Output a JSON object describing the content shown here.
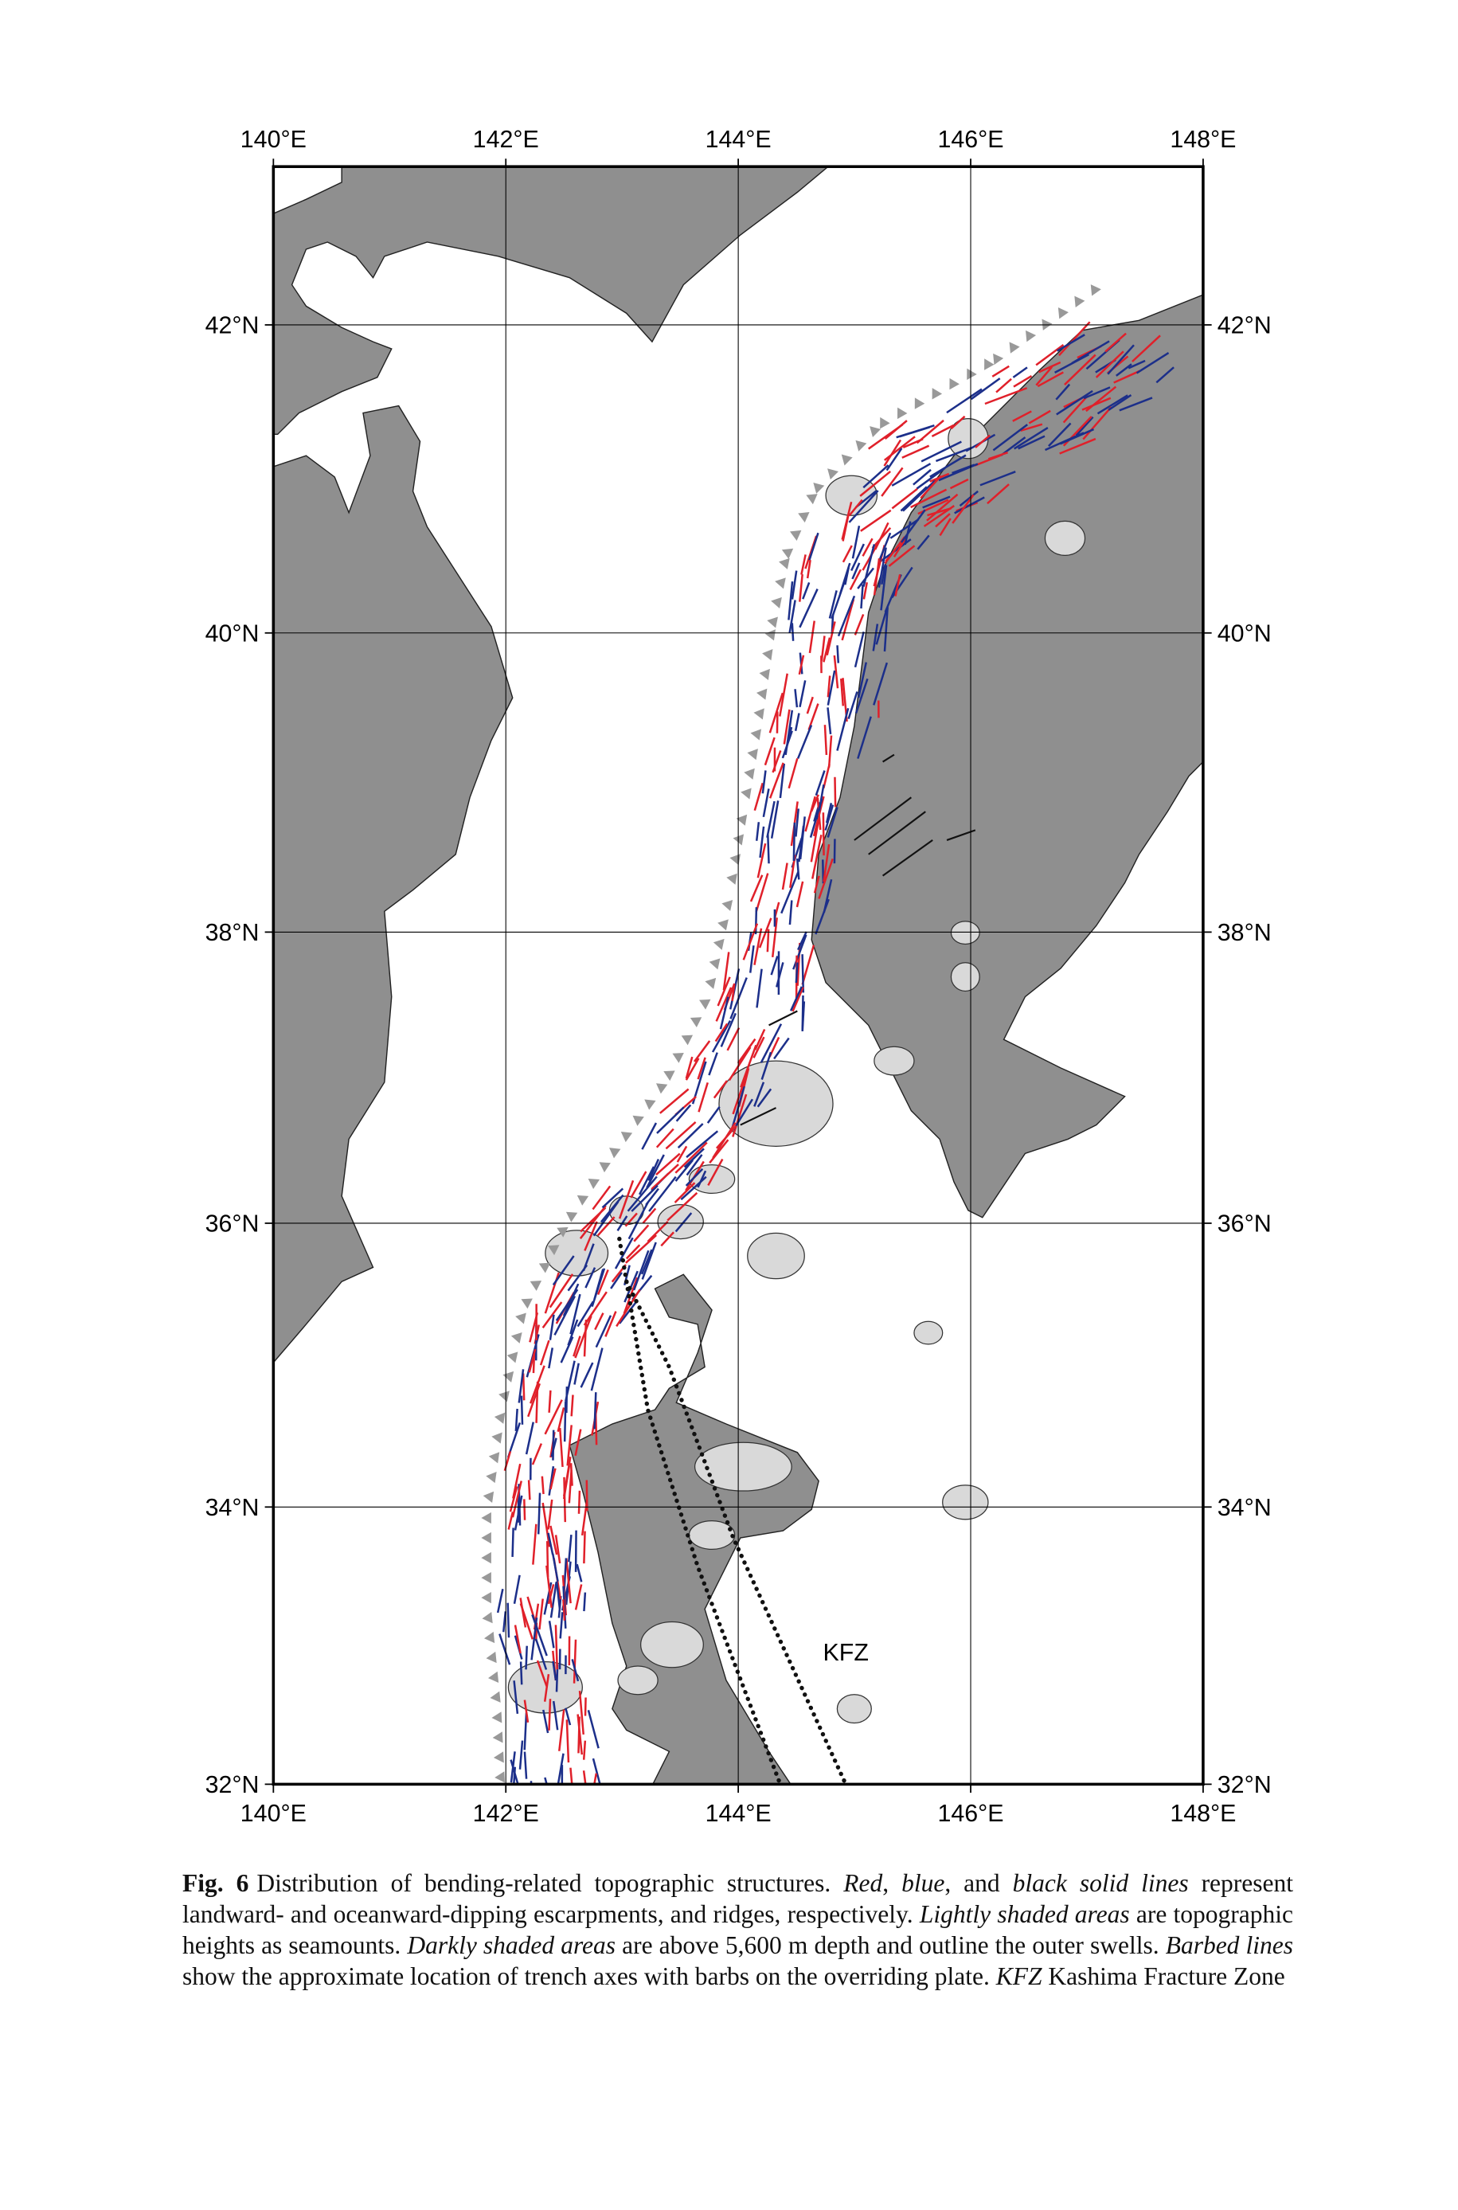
{
  "chart_data": {
    "type": "map",
    "projection": "mercator",
    "xlim": [
      140,
      148
    ],
    "ylim": [
      32,
      43
    ],
    "xticks": [
      {
        "value": 140,
        "label": "140°E"
      },
      {
        "value": 142,
        "label": "142°E"
      },
      {
        "value": 144,
        "label": "144°E"
      },
      {
        "value": 146,
        "label": "146°E"
      },
      {
        "value": 148,
        "label": "148°E"
      }
    ],
    "yticks": [
      {
        "value": 32,
        "label": "32°N"
      },
      {
        "value": 34,
        "label": "34°N"
      },
      {
        "value": 36,
        "label": "36°N"
      },
      {
        "value": 38,
        "label": "38°N"
      },
      {
        "value": 40,
        "label": "40°N"
      },
      {
        "value": 42,
        "label": "42°N"
      }
    ],
    "grid": true,
    "annotation": "KFZ"
  },
  "caption": {
    "label": "Fig. 6",
    "parts": [
      "Distribution of bending-related topographic structures.",
      "Red",
      ",",
      "blue",
      ", and",
      "black solid lines",
      "represent landward- and oceanward-dipping escarpments, and ridges, respectively.",
      "Lightly shaded areas",
      "are topographic heights as seamounts.",
      "Darkly shaded areas",
      "are above 5,600 m depth and outline the outer swells.",
      "Barbed lines",
      "show the approximate location of trench axes with barbs on the overriding plate.",
      "KFZ",
      "Kashima Fracture Zone"
    ]
  }
}
